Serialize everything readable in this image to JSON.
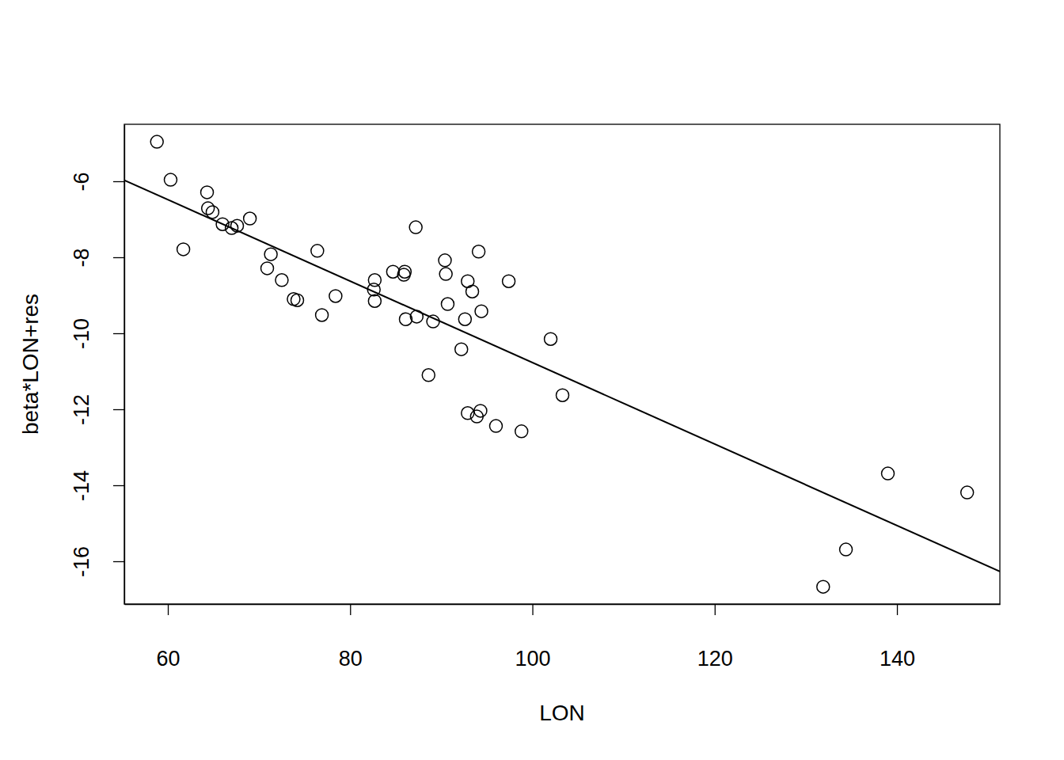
{
  "chart_data": {
    "type": "scatter",
    "x_label": "LON",
    "y_label": "beta*LON+res",
    "xlim": [
      55.22,
      151.29
    ],
    "ylim": [
      -17.125,
      -4.5
    ],
    "xticks": [
      60,
      80,
      100,
      120,
      140
    ],
    "yticks": [
      -16,
      -14,
      -12,
      -10,
      -8,
      -6
    ],
    "series": [
      {
        "type": "scatter",
        "marker": "circle",
        "color": "#000000",
        "x": [
          58.8,
          60.3,
          61.7,
          64.3,
          64.4,
          64.9,
          66.0,
          67.0,
          67.6,
          69.0,
          70.9,
          71.3,
          72.5,
          73.8,
          74.2,
          76.4,
          76.9,
          78.4,
          82.7,
          82.6,
          82.7,
          84.7,
          85.9,
          86.0,
          86.1,
          87.2,
          87.3,
          88.6,
          89.1,
          90.4,
          90.5,
          90.7,
          92.2,
          92.6,
          92.9,
          93.4,
          92.9,
          93.9,
          94.3,
          94.1,
          94.4,
          96.0,
          97.4,
          98.8,
          102.0,
          103.3,
          131.9,
          134.4,
          139.0,
          147.7
        ],
        "values": [
          -4.96,
          -5.96,
          -7.79,
          -6.29,
          -6.71,
          -6.81,
          -7.13,
          -7.23,
          -7.17,
          -6.98,
          -8.29,
          -7.92,
          -8.6,
          -9.1,
          -9.13,
          -7.83,
          -9.52,
          -9.02,
          -8.6,
          -8.85,
          -9.15,
          -8.38,
          -8.46,
          -8.38,
          -9.63,
          -7.21,
          -9.56,
          -11.1,
          -9.69,
          -8.08,
          -8.44,
          -9.23,
          -10.42,
          -9.63,
          -8.63,
          -8.9,
          -12.1,
          -12.19,
          -12.04,
          -7.85,
          -9.42,
          -12.44,
          -8.63,
          -12.58,
          -10.15,
          -11.63,
          -16.67,
          -15.69,
          -13.69,
          -14.19
        ]
      },
      {
        "type": "line",
        "line_style": "solid",
        "color": "#000000",
        "x": [
          55.22,
          151.29
        ],
        "values": [
          -5.97,
          -16.27
        ]
      }
    ]
  }
}
